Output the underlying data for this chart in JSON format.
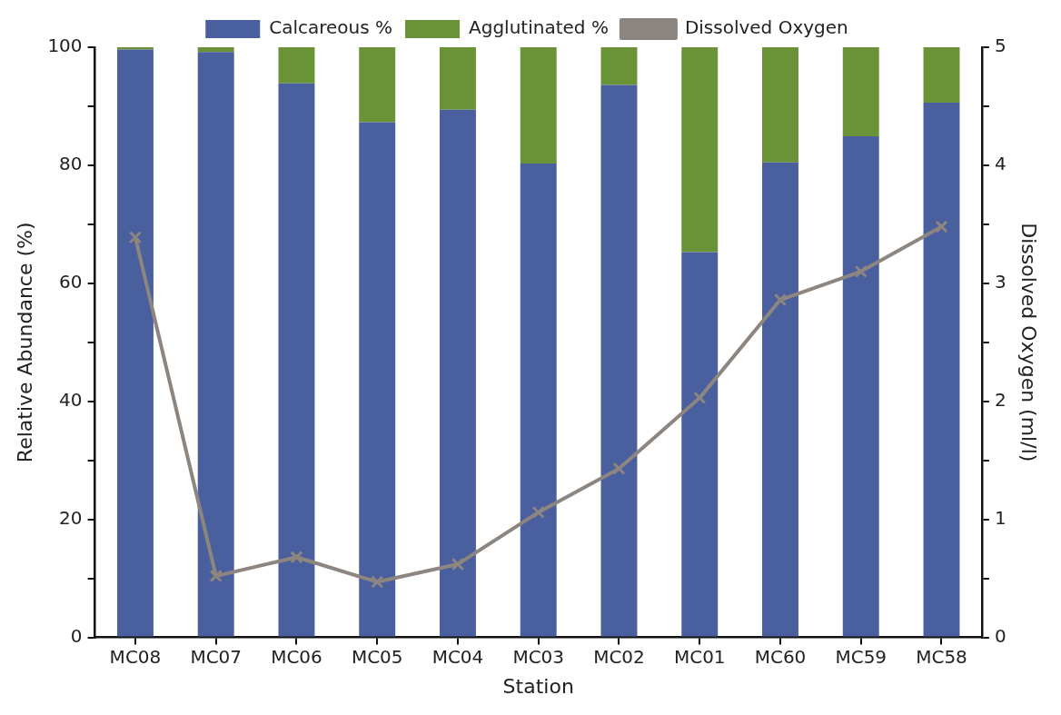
{
  "chart_data": {
    "type": "bar",
    "xlabel": "Station",
    "ylabel": "Relative Abundance (%)",
    "y2label": "Dissolved Oxygen (ml/l)",
    "categories": [
      "MC08",
      "MC07",
      "MC06",
      "MC05",
      "MC04",
      "MC03",
      "MC02",
      "MC01",
      "MC60",
      "MC59",
      "MC58"
    ],
    "stacked": true,
    "legend": "top",
    "marker": "cross",
    "ylim": [
      0,
      100
    ],
    "yticks": [
      0,
      {
        "value": 10,
        "label": null
      },
      20,
      {
        "value": 30,
        "label": null
      },
      40,
      {
        "value": 50,
        "label": null
      },
      60,
      {
        "value": 70,
        "label": null
      },
      80,
      {
        "value": 90,
        "label": null
      },
      100
    ],
    "y2lim": [
      0,
      5
    ],
    "y2ticks": [
      0,
      {
        "value": 0.5,
        "label": null
      },
      1,
      {
        "value": 1.5,
        "label": null
      },
      2,
      {
        "value": 2.5,
        "label": null
      },
      3,
      {
        "value": 3.5,
        "label": null
      },
      4,
      {
        "value": 4.5,
        "label": null
      },
      5
    ],
    "series": [
      {
        "name": "Calcareous %",
        "color": "#4a5f9e",
        "values": [
          99.6,
          99.2,
          93.9,
          87.3,
          89.4,
          80.3,
          93.6,
          65.3,
          80.5,
          84.9,
          90.6
        ]
      },
      {
        "name": "Agglutinated %",
        "color": "#6a9337",
        "values": [
          0.4,
          0.8,
          6.1,
          12.7,
          10.6,
          19.7,
          6.4,
          34.7,
          19.5,
          15.1,
          9.4
        ]
      },
      {
        "name": "Dissolved Oxygen",
        "type": "line",
        "axis": "y2",
        "color": "#8c8580",
        "values": [
          3.39,
          0.52,
          0.68,
          0.47,
          0.62,
          1.06,
          1.43,
          2.03,
          2.86,
          3.1,
          3.48
        ]
      }
    ]
  }
}
